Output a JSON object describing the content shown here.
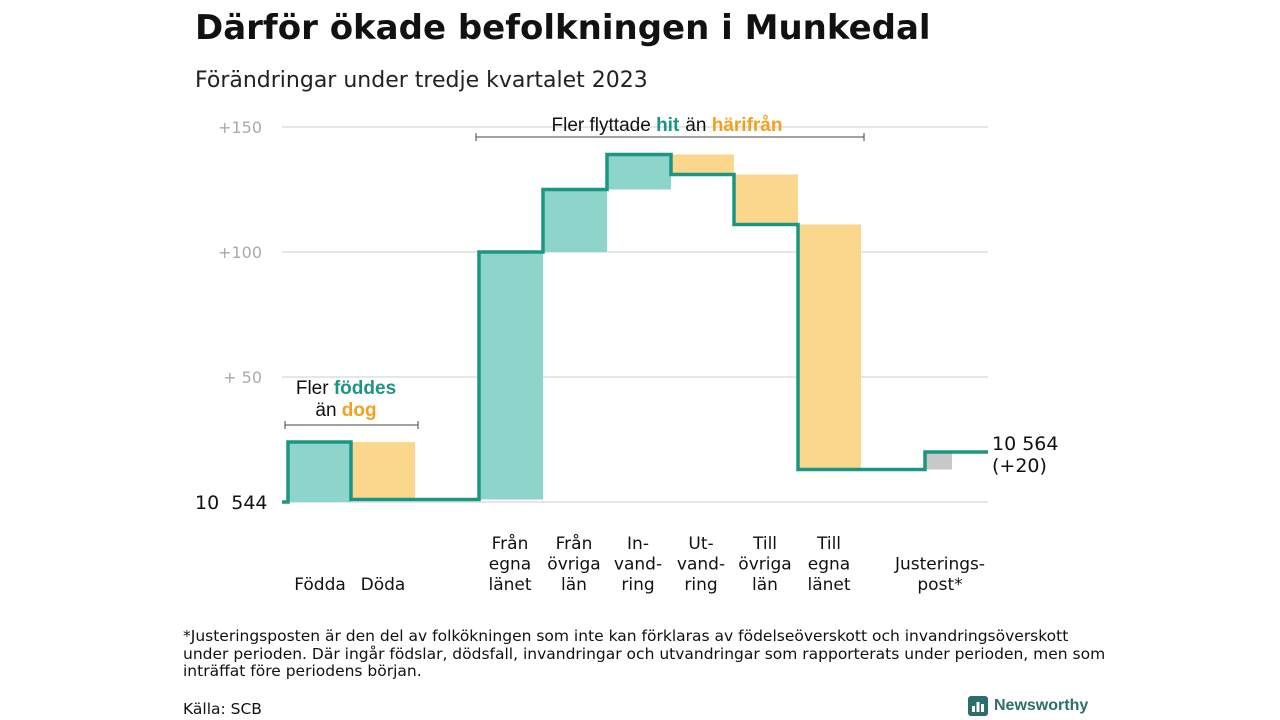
{
  "title": "Därför ökade befolkningen i Munkedal",
  "subtitle": "Förändringar under tredje kvartalet 2023",
  "footnote": "*Justeringsposten är den del av folkökningen som inte kan förklaras av födelseöverskott och invandringsöverskott under perioden. Där ingår födslar, dödsfall, invandringar och utvandringar som rapporterats under perioden, men som inträffat före periodens början.",
  "source": "Källa: SCB",
  "brand": "Newsworthy",
  "colors": {
    "increase": "#8dd5cb",
    "decrease": "#fbd68d",
    "adjustment": "#c8c8c8",
    "line": "#1d9583",
    "teal_text": "#1d9583",
    "orange_text": "#f0a21f",
    "grid": "#dddddd",
    "tick_text": "#aaaaaa"
  },
  "annotations": {
    "births": {
      "prefix": "Fler ",
      "highlight1": "föddes",
      "middle": "än ",
      "highlight2": "dog"
    },
    "migration": {
      "prefix": "Fler flyttade ",
      "highlight1": "hit",
      "middle": "än ",
      "highlight2": "härifrån"
    }
  },
  "chart_data": {
    "type": "waterfall",
    "start_value": 10544,
    "start_label": "10  544",
    "end_label": "10 564",
    "end_change_label": "(+20)",
    "ylim": [
      0,
      150
    ],
    "yticks": [
      {
        "value": 150,
        "label": "+150"
      },
      {
        "value": 100,
        "label": "+100"
      },
      {
        "value": 50,
        "label": "+  50"
      }
    ],
    "steps": [
      {
        "name": "Födda",
        "label_lines": [
          "Födda"
        ],
        "change": 24,
        "kind": "increase"
      },
      {
        "name": "Döda",
        "label_lines": [
          "Döda"
        ],
        "change": -23,
        "kind": "decrease"
      },
      {
        "name": "Från egna länet",
        "label_lines": [
          "Från",
          "egna",
          "länet"
        ],
        "change": 99,
        "kind": "increase"
      },
      {
        "name": "Från övriga län",
        "label_lines": [
          "Från",
          "övriga",
          "län"
        ],
        "change": 25,
        "kind": "increase"
      },
      {
        "name": "Invandring",
        "label_lines": [
          "In-",
          "vand-",
          "ring"
        ],
        "change": 14,
        "kind": "increase"
      },
      {
        "name": "Utvandring",
        "label_lines": [
          "Ut-",
          "vand-",
          "ring"
        ],
        "change": -8,
        "kind": "decrease"
      },
      {
        "name": "Till övriga län",
        "label_lines": [
          "Till",
          "övriga",
          "län"
        ],
        "change": -20,
        "kind": "decrease"
      },
      {
        "name": "Till egna länet",
        "label_lines": [
          "Till",
          "egna",
          "länet"
        ],
        "change": -98,
        "kind": "decrease"
      },
      {
        "name": "Justeringspost*",
        "label_lines": [
          "Justerings-",
          "post*"
        ],
        "change": 7,
        "kind": "adjustment"
      }
    ]
  }
}
